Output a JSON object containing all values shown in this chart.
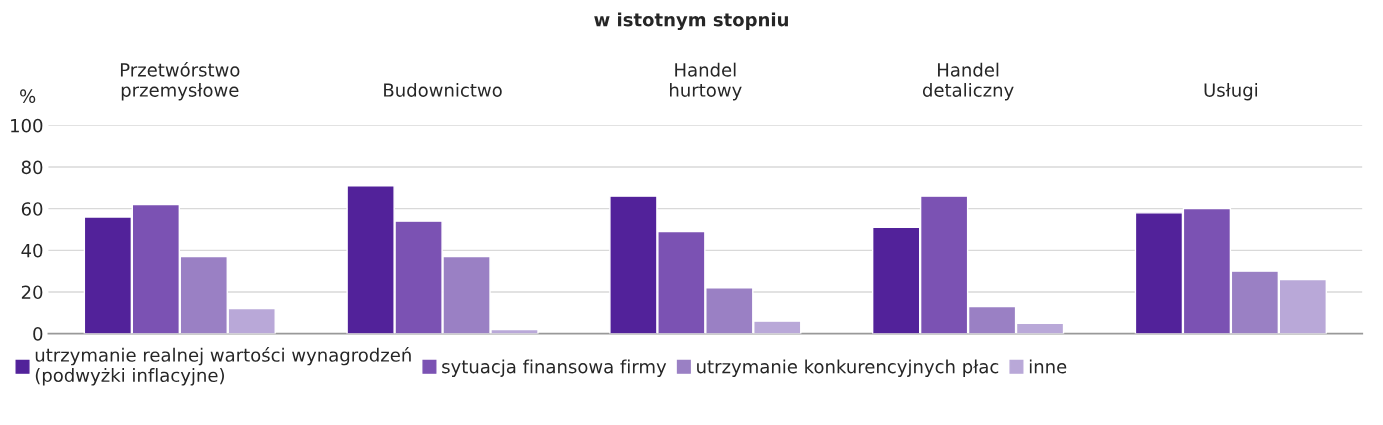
{
  "chart_data": {
    "type": "bar",
    "title": "w istotnym stopniu",
    "ylabel": "%",
    "categories": [
      "Przetwórstwo\nprzemysłowe",
      "Budownictwo",
      "Handel\nhurtowy",
      "Handel\ndetaliczny",
      "Usługi"
    ],
    "series": [
      {
        "name": "utrzymanie realnej wartości wynagrodzeń\n(podwyżki inflacyjne)",
        "color": "#52229a",
        "values": [
          56,
          71,
          66,
          51,
          58
        ]
      },
      {
        "name": "sytuacja finansowa firmy",
        "color": "#7b52b3",
        "values": [
          62,
          54,
          49,
          66,
          60
        ]
      },
      {
        "name": "utrzymanie konkurencyjnych płac",
        "color": "#9a80c4",
        "values": [
          37,
          37,
          22,
          13,
          30
        ]
      },
      {
        "name": "inne",
        "color": "#b9a8d8",
        "values": [
          12,
          2,
          6,
          5,
          26
        ]
      }
    ],
    "ylim": [
      0,
      100
    ],
    "yticks": [
      0,
      20,
      40,
      60,
      80,
      100
    ],
    "grid": "y",
    "legend": "bottom"
  }
}
